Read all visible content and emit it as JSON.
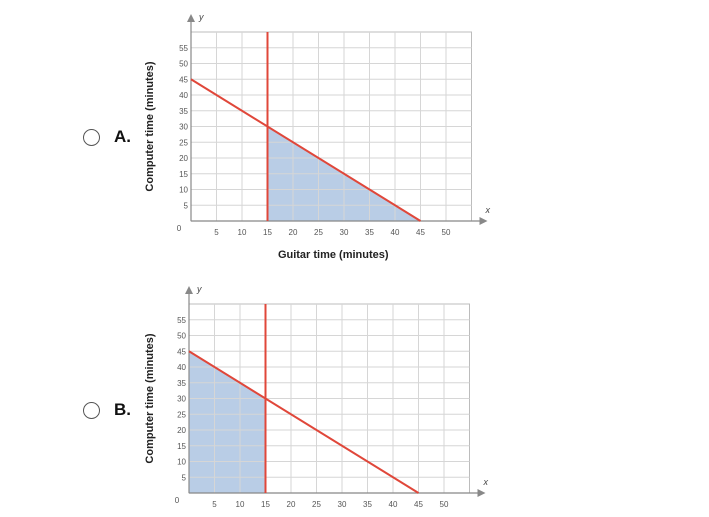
{
  "options": [
    {
      "letter": "A.",
      "chart_data": {
        "type": "line",
        "xlabel": "Guitar time (minutes)",
        "ylabel": "Computer time (minutes)",
        "x_axis_symbol": "x",
        "y_axis_symbol": "y",
        "origin_label": "0",
        "xlim": [
          0,
          55
        ],
        "ylim": [
          0,
          60
        ],
        "x_ticks": [
          5,
          10,
          15,
          20,
          25,
          30,
          35,
          40,
          45,
          50
        ],
        "y_ticks": [
          5,
          10,
          15,
          20,
          25,
          30,
          35,
          40,
          45,
          50,
          55
        ],
        "grid": true,
        "series": [
          {
            "values": [
              [
                0,
                45
              ],
              [
                45,
                0
              ]
            ]
          },
          {
            "values": [
              [
                15,
                0
              ],
              [
                15,
                60
              ]
            ]
          }
        ],
        "shaded_region": [
          [
            15,
            0
          ],
          [
            15,
            30
          ],
          [
            45,
            0
          ]
        ],
        "line_color": "#e0473a",
        "shade_color": "#b9cde6"
      }
    },
    {
      "letter": "B.",
      "chart_data": {
        "type": "line",
        "xlabel": "",
        "ylabel": "Computer time (minutes)",
        "x_axis_symbol": "x",
        "y_axis_symbol": "y",
        "origin_label": "0",
        "xlim": [
          0,
          55
        ],
        "ylim": [
          0,
          60
        ],
        "x_ticks": [
          5,
          10,
          15,
          20,
          25,
          30,
          35,
          40,
          45,
          50
        ],
        "y_ticks": [
          5,
          10,
          15,
          20,
          25,
          30,
          35,
          40,
          45,
          50,
          55
        ],
        "grid": true,
        "series": [
          {
            "values": [
              [
                0,
                45
              ],
              [
                45,
                0
              ]
            ]
          },
          {
            "values": [
              [
                15,
                0
              ],
              [
                15,
                60
              ]
            ]
          }
        ],
        "shaded_region": [
          [
            0,
            0
          ],
          [
            0,
            45
          ],
          [
            15,
            30
          ],
          [
            15,
            0
          ]
        ],
        "line_color": "#e0473a",
        "shade_color": "#b9cde6"
      }
    }
  ]
}
